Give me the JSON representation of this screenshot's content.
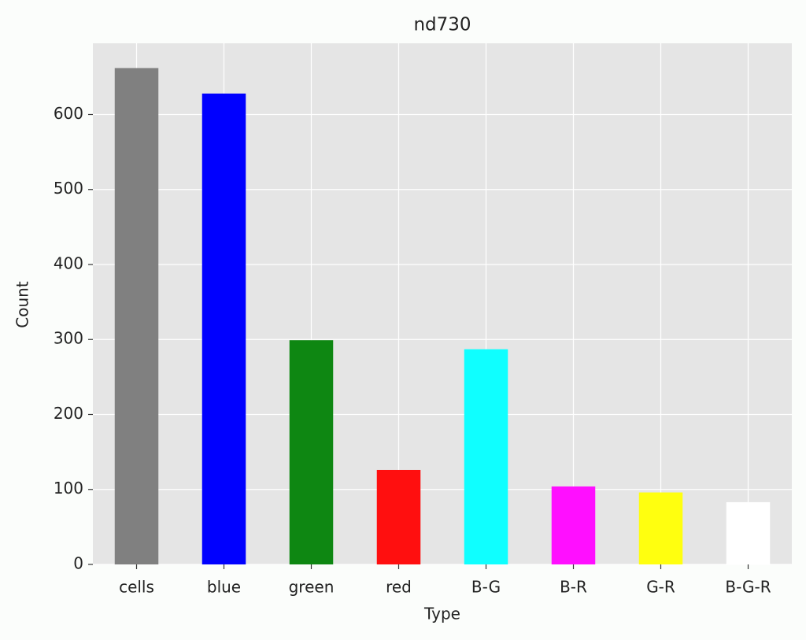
{
  "chart_data": {
    "type": "bar",
    "title": "nd730",
    "x_label": "Type",
    "y_label": "Count",
    "categories": [
      "cells",
      "blue",
      "green",
      "red",
      "B-G",
      "B-R",
      "G-R",
      "B-G-R"
    ],
    "values": [
      662,
      628,
      299,
      126,
      287,
      104,
      96,
      83
    ],
    "colors": [
      "#808080",
      "#0000ff",
      "#0e8712",
      "#ff0f0f",
      "#0fffff",
      "#ff0fff",
      "#ffff0f",
      "#ffffff"
    ],
    "ylim": [
      0,
      695
    ],
    "yticks": [
      0,
      100,
      200,
      300,
      400,
      500,
      600
    ],
    "grid": true
  }
}
